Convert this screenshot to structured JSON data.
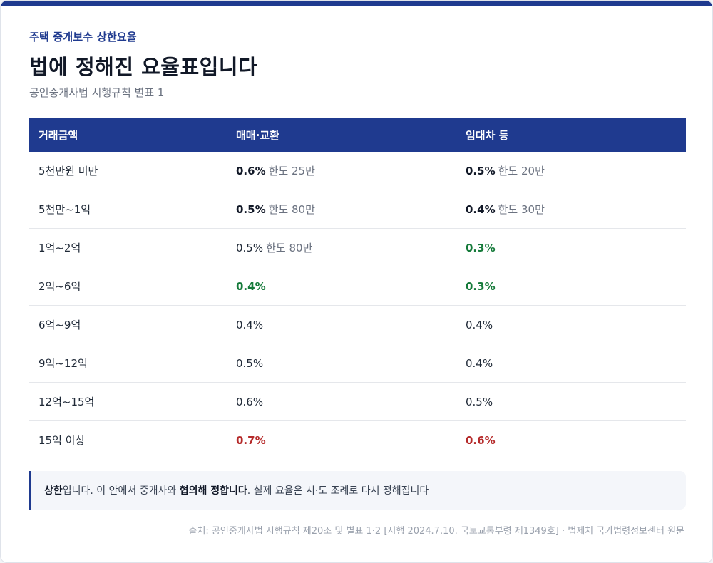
{
  "colors": {
    "accent": "#1f3a8f",
    "green": "#157a3a",
    "red": "#b52a2a",
    "muted": "#6b7280"
  },
  "header": {
    "eyebrow": "주택 중개보수 상한요율",
    "title": "법에 정해진 요율표입니다",
    "subtitle": "공인중개사법 시행규칙 별표 1"
  },
  "table": {
    "headers": [
      "거래금액",
      "매매·교환",
      "임대차 등"
    ],
    "rows": [
      {
        "amount": "5천만원 미만",
        "sale_rate": "0.6%",
        "sale_cap": "한도 25만",
        "lease_rate": "0.5%",
        "lease_cap": "한도 20만"
      },
      {
        "amount": "5천만~1억",
        "sale_rate": "0.5%",
        "sale_cap": "한도 80만",
        "lease_rate": "0.4%",
        "lease_cap": "한도 30만"
      },
      {
        "amount": "1억~2억",
        "sale_rate": "0.5%",
        "sale_cap": "한도 80만",
        "lease_rate": "0.3%",
        "lease_cap": ""
      },
      {
        "amount": "2억~6억",
        "sale_rate": "0.4%",
        "sale_cap": "",
        "lease_rate": "0.3%",
        "lease_cap": ""
      },
      {
        "amount": "6억~9억",
        "sale_rate": "0.4%",
        "sale_cap": "",
        "lease_rate": "0.4%",
        "lease_cap": ""
      },
      {
        "amount": "9억~12억",
        "sale_rate": "0.5%",
        "sale_cap": "",
        "lease_rate": "0.4%",
        "lease_cap": ""
      },
      {
        "amount": "12억~15억",
        "sale_rate": "0.6%",
        "sale_cap": "",
        "lease_rate": "0.5%",
        "lease_cap": ""
      },
      {
        "amount": "15억 이상",
        "sale_rate": "0.7%",
        "sale_cap": "",
        "lease_rate": "0.6%",
        "lease_cap": ""
      }
    ]
  },
  "note": {
    "part1": "상한",
    "part2": "입니다. 이 안에서 중개사와 ",
    "part3": "협의해 정합니다",
    "part4": ". 실제 요율은 시·도 조례로 다시 정해집니다"
  },
  "source": "출처: 공인중개사법 시행규칙 제20조 및 별표 1·2 [시행 2024.7.10. 국토교통부령 제1349호] · 법제처 국가법령정보센터 원문"
}
